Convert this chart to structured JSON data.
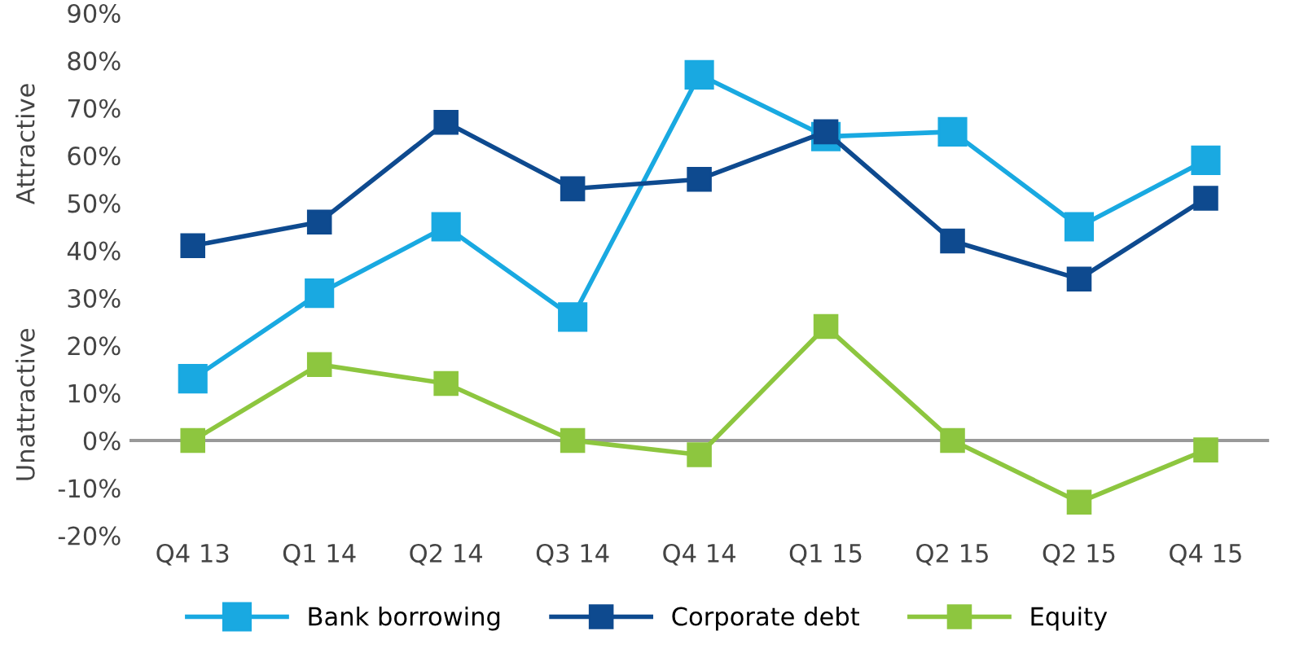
{
  "chart_data": {
    "type": "line",
    "categories": [
      "Q4 13",
      "Q1 14",
      "Q2 14",
      "Q3 14",
      "Q4 14",
      "Q1 15",
      "Q2 15",
      "Q2 15",
      "Q4 15"
    ],
    "series": [
      {
        "name": "Bank borrowing",
        "color": "#19a9e1",
        "values": [
          13,
          31,
          45,
          26,
          77,
          64,
          65,
          45,
          59
        ]
      },
      {
        "name": "Corporate debt",
        "color": "#0e4a8f",
        "values": [
          41,
          46,
          67,
          53,
          55,
          65,
          42,
          34,
          51
        ]
      },
      {
        "name": "Equity",
        "color": "#8dc63f",
        "values": [
          0,
          16,
          12,
          0,
          -3,
          24,
          0,
          -13,
          -2
        ]
      }
    ],
    "ylim": [
      -20,
      90
    ],
    "yticks": [
      {
        "value": -20,
        "label": "-20%"
      },
      {
        "value": -10,
        "label": "-10%"
      },
      {
        "value": 0,
        "label": "0%"
      },
      {
        "value": 10,
        "label": "10%"
      },
      {
        "value": 20,
        "label": "20%"
      },
      {
        "value": 30,
        "label": "30%"
      },
      {
        "value": 40,
        "label": "40%"
      },
      {
        "value": 50,
        "label": "50%"
      },
      {
        "value": 60,
        "label": "60%"
      },
      {
        "value": 70,
        "label": "70%"
      },
      {
        "value": 80,
        "label": "80%"
      },
      {
        "value": 90,
        "label": "90%"
      }
    ],
    "annotations": [
      "Attractive",
      "Unattractive"
    ],
    "ref_lines": [
      {
        "axis": "y",
        "value": 0,
        "color": "#999999"
      }
    ],
    "marker": "square",
    "line_style": "solid",
    "grid": false,
    "legend": "bottom"
  }
}
